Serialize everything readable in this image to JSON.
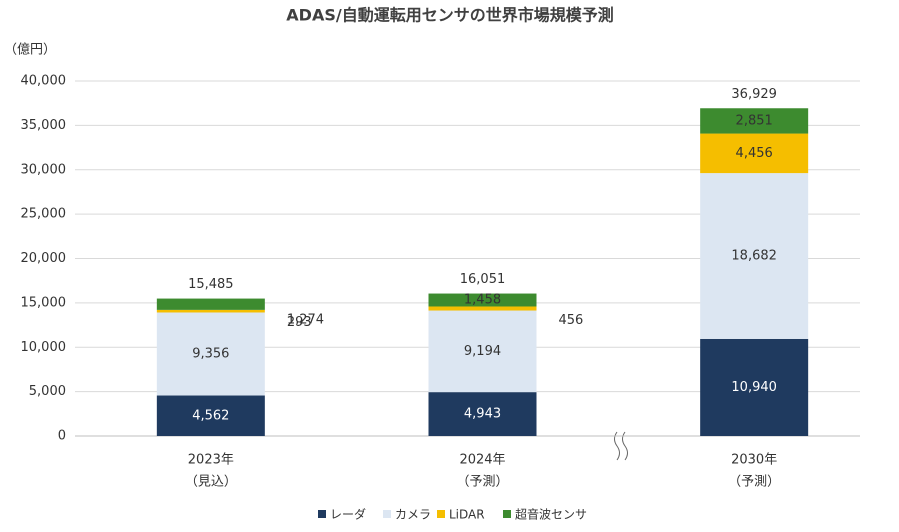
{
  "chart_data": {
    "type": "stacked-bar",
    "title": "ADAS/自動運転用センサの世界市場規模予測",
    "y_unit": "（億円）",
    "categories": [
      "2023年",
      "2024年",
      "2030年"
    ],
    "category_notes": [
      "（見込）",
      "（予測）",
      "（予測）"
    ],
    "series": [
      {
        "name": "レーダ",
        "color": "#1f3a5f",
        "values": [
          4562,
          4943,
          10940
        ],
        "value_labels": [
          "4,562",
          "4,943",
          "10,940"
        ]
      },
      {
        "name": "カメラ",
        "color": "#dce6f2",
        "values": [
          9356,
          9194,
          18682
        ],
        "value_labels": [
          "9,356",
          "9,194",
          "18,682"
        ]
      },
      {
        "name": "LiDAR",
        "color": "#f5be00",
        "values": [
          293,
          456,
          4456
        ],
        "value_labels": [
          "293",
          "456",
          "4,456"
        ]
      },
      {
        "name": "超音波センサ",
        "color": "#3d8b2f",
        "values": [
          1274,
          1458,
          2851
        ],
        "value_labels": [
          "1,274",
          "1,458",
          "2,851"
        ]
      }
    ],
    "totals": [
      15485,
      16051,
      36929
    ],
    "total_labels": [
      "15,485",
      "16,051",
      "36,929"
    ],
    "ylim": [
      0,
      40000
    ],
    "yticks": [
      0,
      {
        "value": 5000,
        "label": "5,000"
      },
      {
        "value": 10000,
        "label": "10,000"
      },
      {
        "value": 15000,
        "label": "15,000"
      },
      {
        "value": 20000,
        "label": "20,000"
      },
      {
        "value": 25000,
        "label": "25,000"
      },
      {
        "value": 30000,
        "label": "30,000"
      },
      {
        "value": 35000,
        "label": "35,000"
      },
      {
        "value": 40000,
        "label": "40,000"
      }
    ],
    "grid": true,
    "legend": "bottom"
  }
}
